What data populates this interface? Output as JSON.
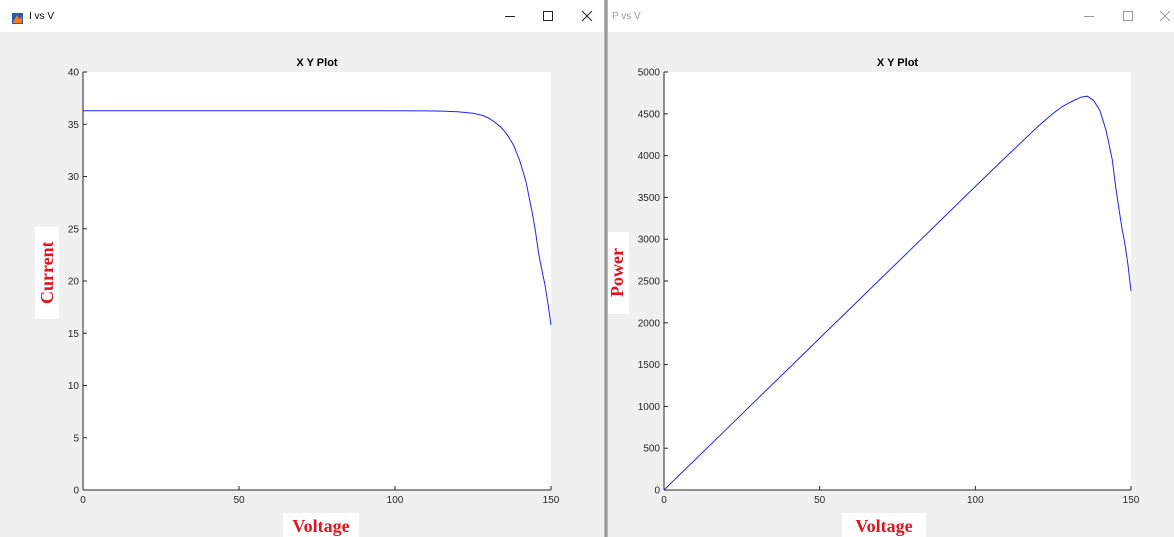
{
  "windows": [
    {
      "title": "I vs V",
      "controls": {
        "minimize": "–",
        "maximize": "☐",
        "close": "✕"
      }
    },
    {
      "title": "P vs V",
      "controls": {
        "minimize": "–",
        "maximize": "☐",
        "close": "✕"
      }
    }
  ],
  "colors": {
    "line": "#2222ee",
    "label": "#e0141e",
    "window_bg": "#f0f0f0"
  },
  "icons": {
    "window_icon": "matlab-figure-icon"
  },
  "chart_data": [
    {
      "type": "line",
      "title": "X Y Plot",
      "xlabel": "Voltage",
      "ylabel": "Current",
      "xlim": [
        0,
        150
      ],
      "ylim": [
        0,
        40
      ],
      "x_ticks": [
        0,
        50,
        100,
        150
      ],
      "y_ticks": [
        0,
        5,
        10,
        15,
        20,
        25,
        30,
        35,
        40
      ],
      "grid": false,
      "series": [
        {
          "x": [
            0,
            20,
            40,
            60,
            80,
            100,
            110,
            115,
            120,
            125,
            128,
            130,
            132,
            134,
            136,
            138,
            140,
            142,
            144,
            145,
            146,
            147,
            148,
            149,
            150
          ],
          "y": [
            36.3,
            36.3,
            36.3,
            36.3,
            36.3,
            36.3,
            36.28,
            36.26,
            36.2,
            36.05,
            35.85,
            35.6,
            35.2,
            34.7,
            34.0,
            33.0,
            31.5,
            29.5,
            26.5,
            24.8,
            22.7,
            21.2,
            19.7,
            17.9,
            15.8
          ]
        }
      ]
    },
    {
      "type": "line",
      "title": "X Y Plot",
      "xlabel": "Voltage",
      "ylabel": "Power",
      "xlim": [
        0,
        150
      ],
      "ylim": [
        0,
        5000
      ],
      "x_ticks": [
        0,
        50,
        100,
        150
      ],
      "y_ticks": [
        0,
        500,
        1000,
        1500,
        2000,
        2500,
        3000,
        3500,
        4000,
        4500,
        5000
      ],
      "grid": false,
      "series": [
        {
          "x": [
            0,
            20,
            40,
            60,
            80,
            100,
            110,
            120,
            125,
            128,
            130,
            132,
            134,
            136,
            138,
            140,
            142,
            144,
            145,
            146,
            147,
            148,
            149,
            150
          ],
          "y": [
            0,
            726,
            1452,
            2178,
            2904,
            3630,
            3991,
            4344,
            4506,
            4589,
            4628,
            4665,
            4700,
            4710,
            4660,
            4540,
            4300,
            3950,
            3650,
            3400,
            3150,
            2950,
            2700,
            2380
          ]
        }
      ]
    }
  ]
}
